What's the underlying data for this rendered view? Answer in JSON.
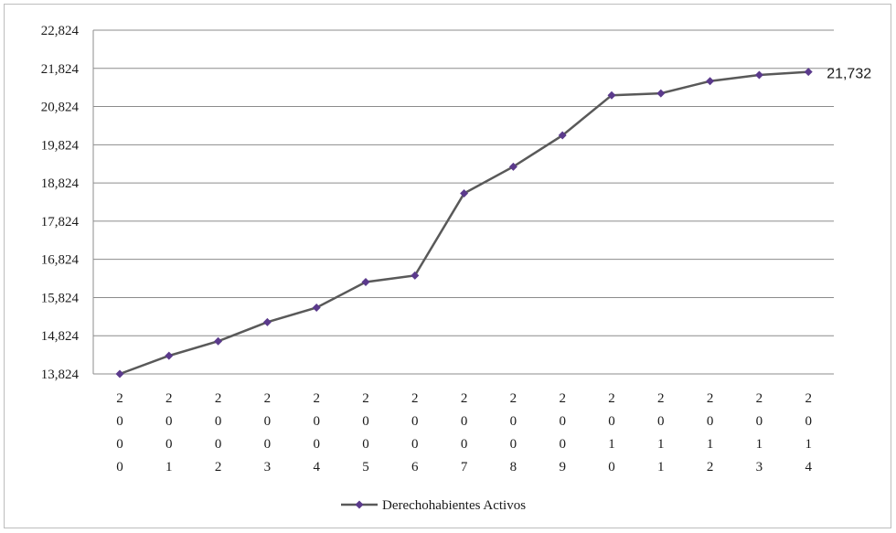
{
  "chart_data": {
    "type": "line",
    "categories": [
      "2000",
      "2001",
      "2002",
      "2003",
      "2004",
      "2005",
      "2006",
      "2007",
      "2008",
      "2009",
      "2010",
      "2011",
      "2012",
      "2013",
      "2014"
    ],
    "series": [
      {
        "name": "Derechohabientes Activos",
        "color": "#5b3a8c",
        "line_color": "#595959",
        "values": [
          13824,
          14300,
          14680,
          15180,
          15560,
          16230,
          16400,
          18550,
          19250,
          20070,
          21120,
          21170,
          21490,
          21650,
          21732
        ]
      }
    ],
    "yticks": [
      "13,824",
      "14,824",
      "15,824",
      "16,824",
      "17,824",
      "18,824",
      "19,824",
      "20,824",
      "21,824",
      "22,824"
    ],
    "ylim": [
      13824,
      22824
    ],
    "data_label": "21,732",
    "grid": true,
    "legend_position": "bottom"
  }
}
